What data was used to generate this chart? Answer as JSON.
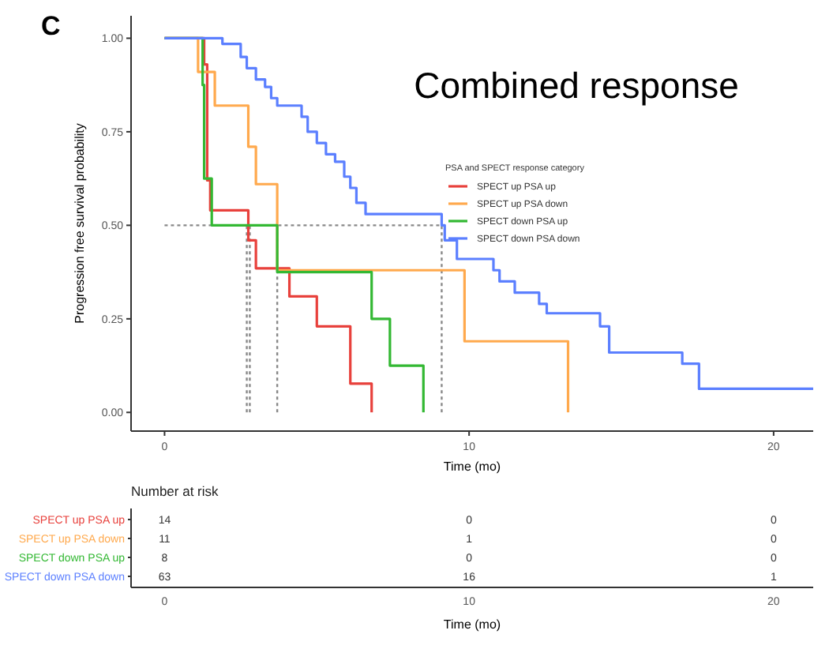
{
  "chart_data": [
    {
      "type": "step",
      "title": "Combined response",
      "xlabel": "Time (mo)",
      "ylabel": "Progression free survival probability",
      "legend_title": "PSA and SPECT response category",
      "legend": "right",
      "annotations": [
        "C"
      ],
      "xlim": [
        -1.1,
        21.3
      ],
      "ylim": [
        -0.05,
        1.06
      ],
      "xticks": [
        0,
        10,
        20
      ],
      "yticks": [
        {
          "value": 0,
          "label": "0.00"
        },
        {
          "value": 0.25,
          "label": "0.25"
        },
        {
          "value": 0.5,
          "label": "0.50"
        },
        {
          "value": 0.75,
          "label": "0.75"
        },
        {
          "value": 1,
          "label": "1.00"
        }
      ],
      "grid": false,
      "series": [
        {
          "name": "SPECT up PSA up",
          "color": "#e8413c",
          "x": [
            0,
            1.3,
            1.4,
            1.5,
            2.75,
            3.0,
            4.1,
            5.0,
            6.1,
            6.8
          ],
          "values": [
            1,
            0.93,
            0.62,
            0.54,
            0.46,
            0.385,
            0.31,
            0.23,
            0.077,
            0
          ]
        },
        {
          "name": "SPECT up PSA down",
          "color": "#ffa94d",
          "x": [
            0,
            1.1,
            1.65,
            2.75,
            3.0,
            3.7,
            9.85,
            13.25
          ],
          "values": [
            1,
            0.91,
            0.82,
            0.71,
            0.61,
            0.38,
            0.19,
            0
          ]
        },
        {
          "name": "SPECT down PSA up",
          "color": "#33b833",
          "x": [
            0,
            1.25,
            1.3,
            1.55,
            3.7,
            6.8,
            7.4,
            8.5
          ],
          "values": [
            1,
            0.875,
            0.625,
            0.5,
            0.375,
            0.25,
            0.125,
            0
          ]
        },
        {
          "name": "SPECT down PSA down",
          "color": "#5b7fff",
          "x": [
            0,
            1.9,
            2.5,
            2.7,
            3.0,
            3.3,
            3.5,
            3.7,
            4.5,
            4.7,
            5.0,
            5.3,
            5.6,
            5.9,
            6.1,
            6.3,
            6.6,
            9.1,
            9.2,
            9.6,
            10.8,
            11.0,
            11.5,
            12.3,
            12.55,
            14.3,
            14.6,
            17.0,
            17.55,
            21.3
          ],
          "values": [
            1,
            0.985,
            0.95,
            0.92,
            0.89,
            0.87,
            0.84,
            0.82,
            0.79,
            0.75,
            0.72,
            0.69,
            0.67,
            0.63,
            0.6,
            0.56,
            0.53,
            0.5,
            0.46,
            0.41,
            0.38,
            0.35,
            0.32,
            0.29,
            0.265,
            0.23,
            0.16,
            0.13,
            0.063,
            0.063
          ]
        }
      ],
      "ref_lines": [
        {
          "axis": "y",
          "value": 0.5,
          "line_style": "dotted",
          "color": "#888888"
        },
        {
          "axis": "x",
          "value": 2.7,
          "line_style": "dotted",
          "color": "#888888"
        },
        {
          "axis": "x",
          "value": 2.8,
          "line_style": "dotted",
          "color": "#888888"
        },
        {
          "axis": "x",
          "value": 3.7,
          "line_style": "dotted",
          "color": "#888888"
        },
        {
          "axis": "x",
          "value": 9.1,
          "line_style": "dotted",
          "color": "#888888"
        }
      ]
    },
    {
      "type": "heatmap",
      "title": "Number at risk",
      "xlabel": "Time (mo)",
      "categories": [
        "0",
        "10",
        "20"
      ],
      "y_categories": [
        "SPECT up PSA up",
        "SPECT up PSA down",
        "SPECT down PSA up",
        "SPECT down PSA down"
      ],
      "cells": [
        [
          14,
          0,
          0
        ],
        [
          11,
          1,
          0
        ],
        [
          8,
          0,
          0
        ],
        [
          63,
          16,
          1
        ]
      ],
      "data_labels": true
    }
  ]
}
